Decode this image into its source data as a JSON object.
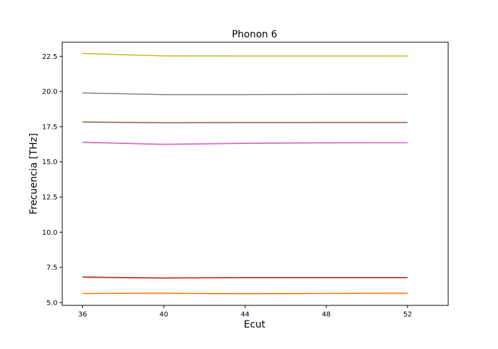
{
  "chart_data": {
    "type": "line",
    "title": "Phonon 6",
    "xlabel": "Ecut",
    "ylabel": "Frecuencia [THz]",
    "x": [
      36,
      40,
      44,
      48,
      52
    ],
    "xlim": [
      35,
      54
    ],
    "ylim": [
      4.8,
      23.5
    ],
    "xticks": [
      "36",
      "40",
      "44",
      "48",
      "52"
    ],
    "yticks": [
      "5.0",
      "7.5",
      "10.0",
      "12.5",
      "15.0",
      "17.5",
      "20.0",
      "22.5"
    ],
    "grid": false,
    "series": [
      {
        "color": "#1f77b4",
        "values": [
          5.65,
          5.66,
          5.63,
          5.65,
          5.66
        ]
      },
      {
        "color": "#ff7f0e",
        "values": [
          5.65,
          5.66,
          5.63,
          5.65,
          5.66
        ]
      },
      {
        "color": "#2ca02c",
        "values": [
          6.82,
          6.75,
          6.78,
          6.78,
          6.78
        ]
      },
      {
        "color": "#d62728",
        "values": [
          6.8,
          6.74,
          6.77,
          6.77,
          6.77
        ]
      },
      {
        "color": "#9467bd",
        "values": [
          16.4,
          16.25,
          16.33,
          16.36,
          16.36
        ]
      },
      {
        "color": "#e377c2",
        "values": [
          16.38,
          16.23,
          16.31,
          16.34,
          16.35
        ]
      },
      {
        "color": "#8c564b",
        "values": [
          17.83,
          17.78,
          17.79,
          17.8,
          17.8
        ]
      },
      {
        "color": "#7f7f7f",
        "values": [
          19.9,
          19.78,
          19.78,
          19.8,
          19.8
        ]
      },
      {
        "color": "#bcbd22",
        "values": [
          22.7,
          22.53,
          22.52,
          22.52,
          22.52
        ]
      }
    ]
  }
}
